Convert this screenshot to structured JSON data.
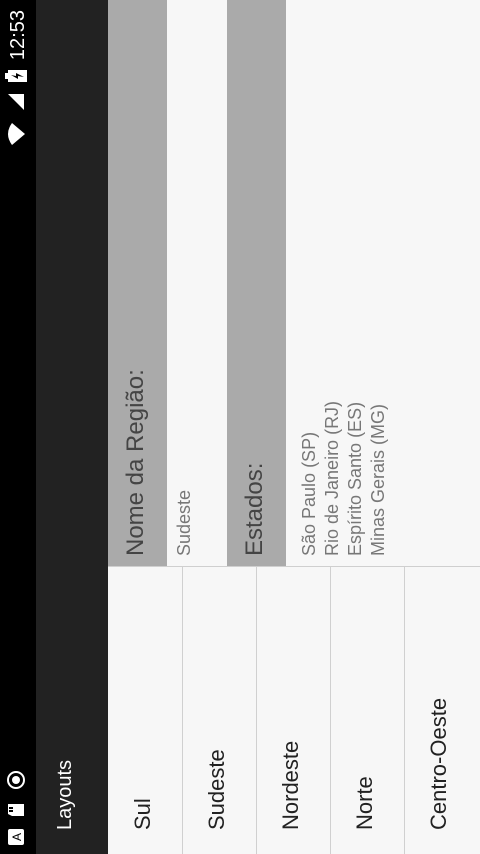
{
  "status_bar": {
    "time": "12:53",
    "icons": [
      "a-notification-icon",
      "sd-card-icon",
      "circle-icon",
      "wifi-icon",
      "signal-icon",
      "battery-icon"
    ]
  },
  "app_bar": {
    "title": "Layouts"
  },
  "regions": [
    {
      "label": "Sul"
    },
    {
      "label": "Sudeste"
    },
    {
      "label": "Nordeste"
    },
    {
      "label": "Norte"
    },
    {
      "label": "Centro-Oeste"
    }
  ],
  "detail": {
    "name_label": "Nome da Região:",
    "name_value": "Sudeste",
    "states_label": "Estados:",
    "states": [
      "São Paulo (SP)",
      "Rio de Janeiro (RJ)",
      "Espírito Santo (ES)",
      "Minas Gerais (MG)"
    ]
  },
  "colors": {
    "statusbar": "#000000",
    "toolbar": "#222222",
    "label_bg": "#aaaaaa",
    "page_bg": "#f7f7f7"
  }
}
